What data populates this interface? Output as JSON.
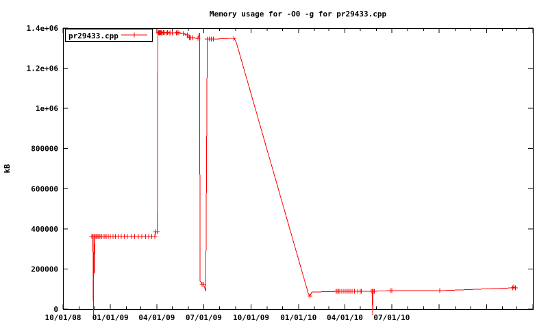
{
  "page": {
    "background": "#ffffff"
  },
  "chart_data": {
    "type": "line",
    "title": "Memory usage for -O0 -g for pr29433.cpp",
    "xlabel": "",
    "ylabel": "kB",
    "grid": false,
    "legend": {
      "position": "top-left",
      "boxed": true,
      "series_label": "pr29433.cpp"
    },
    "series_color": "#ff0000",
    "axis_color": "#000000",
    "background_color": "#ffffff",
    "marker": "plus",
    "x_axis": {
      "type": "time",
      "start": "2008-10-01",
      "end": "2011-04-01",
      "labeled_ticks": [
        "10/01/08",
        "01/01/09",
        "04/01/09",
        "07/01/09",
        "10/01/09",
        "01/01/10",
        "04/01/10",
        "07/01/10"
      ],
      "major_tick_every_months": 3,
      "minor_tick_every_months": 1
    },
    "y_axis": {
      "min": 0,
      "max": 1400000,
      "ticks": [
        0,
        200000,
        400000,
        600000,
        800000,
        1000000,
        1200000,
        1400000
      ],
      "tick_labels": [
        "0",
        "200000",
        "400000",
        "600000",
        "800000",
        "1e+06",
        "1.2e+06",
        "1.4e+06"
      ]
    },
    "points": [
      [
        "2008-11-26",
        362000,
        1,
        0
      ],
      [
        "2008-11-28",
        362000,
        1,
        0
      ],
      [
        "2008-11-29",
        0,
        0,
        1
      ],
      [
        "2008-11-30",
        362000,
        1,
        0
      ],
      [
        "2008-12-01",
        181000,
        0,
        0
      ],
      [
        "2008-12-02",
        362000,
        1,
        0
      ],
      [
        "2008-12-04",
        362000,
        1,
        0
      ],
      [
        "2008-12-06",
        362000,
        1,
        0
      ],
      [
        "2008-12-08",
        362000,
        1,
        0
      ],
      [
        "2008-12-10",
        362000,
        1,
        0
      ],
      [
        "2008-12-12",
        362000,
        1,
        0
      ],
      [
        "2008-12-15",
        362000,
        1,
        0
      ],
      [
        "2008-12-18",
        362000,
        1,
        0
      ],
      [
        "2008-12-21",
        362000,
        1,
        0
      ],
      [
        "2008-12-24",
        362000,
        1,
        0
      ],
      [
        "2008-12-28",
        362000,
        1,
        0
      ],
      [
        "2009-01-01",
        362000,
        1,
        0
      ],
      [
        "2009-01-06",
        362000,
        1,
        0
      ],
      [
        "2009-01-11",
        362000,
        1,
        0
      ],
      [
        "2009-01-16",
        362000,
        1,
        0
      ],
      [
        "2009-01-22",
        362000,
        1,
        0
      ],
      [
        "2009-01-28",
        362000,
        1,
        0
      ],
      [
        "2009-02-03",
        362000,
        1,
        0
      ],
      [
        "2009-02-10",
        362000,
        1,
        0
      ],
      [
        "2009-02-17",
        362000,
        1,
        0
      ],
      [
        "2009-02-24",
        362000,
        1,
        0
      ],
      [
        "2009-03-03",
        362000,
        1,
        0
      ],
      [
        "2009-03-10",
        362000,
        1,
        0
      ],
      [
        "2009-03-16",
        362000,
        1,
        0
      ],
      [
        "2009-03-22",
        362000,
        1,
        0
      ],
      [
        "2009-03-28",
        362000,
        1,
        0
      ],
      [
        "2009-03-30",
        386000,
        1,
        0
      ],
      [
        "2009-04-02",
        386000,
        1,
        0
      ],
      [
        "2009-04-03",
        1376000,
        0,
        0
      ],
      [
        "2009-04-04",
        1376000,
        1,
        0
      ],
      [
        "2009-04-05",
        1378000,
        1,
        0
      ],
      [
        "2009-04-06",
        1376000,
        1,
        0
      ],
      [
        "2009-04-07",
        1378000,
        1,
        0
      ],
      [
        "2009-04-08",
        1376000,
        1,
        0
      ],
      [
        "2009-04-09",
        1378000,
        1,
        0
      ],
      [
        "2009-04-10",
        1376000,
        1,
        0
      ],
      [
        "2009-04-12",
        1376000,
        1,
        0
      ],
      [
        "2009-04-14",
        1378000,
        1,
        0
      ],
      [
        "2009-04-16",
        1376000,
        1,
        0
      ],
      [
        "2009-04-19",
        1376000,
        1,
        0
      ],
      [
        "2009-04-22",
        1378000,
        1,
        0
      ],
      [
        "2009-04-25",
        1376000,
        1,
        0
      ],
      [
        "2009-04-28",
        1376000,
        1,
        0
      ],
      [
        "2009-05-01",
        1376000,
        1,
        0
      ],
      [
        "2009-05-09",
        1376000,
        1,
        0
      ],
      [
        "2009-05-11",
        1378000,
        1,
        0
      ],
      [
        "2009-05-14",
        1376000,
        1,
        0
      ],
      [
        "2009-05-22",
        1372000,
        1,
        0
      ],
      [
        "2009-05-30",
        1366000,
        1,
        0
      ],
      [
        "2009-06-03",
        1352000,
        1,
        0
      ],
      [
        "2009-06-06",
        1352000,
        1,
        0
      ],
      [
        "2009-06-10",
        1352000,
        1,
        0
      ],
      [
        "2009-06-20",
        1349000,
        1,
        0
      ],
      [
        "2009-06-23",
        1376000,
        0,
        0
      ],
      [
        "2009-06-24",
        140000,
        0,
        0
      ],
      [
        "2009-06-28",
        123000,
        1,
        0
      ],
      [
        "2009-07-01",
        123000,
        1,
        0
      ],
      [
        "2009-07-05",
        89000,
        0,
        0
      ],
      [
        "2009-07-08",
        1345000,
        1,
        0
      ],
      [
        "2009-07-12",
        1345000,
        1,
        0
      ],
      [
        "2009-07-16",
        1345000,
        1,
        0
      ],
      [
        "2009-07-20",
        1345000,
        1,
        0
      ],
      [
        "2009-08-29",
        1349000,
        1,
        0
      ],
      [
        "2009-09-02",
        1332000,
        0,
        0
      ],
      [
        "2010-01-20",
        79000,
        0,
        0
      ],
      [
        "2010-01-23",
        65000,
        1,
        0
      ],
      [
        "2010-01-27",
        85000,
        0,
        0
      ],
      [
        "2010-03-15",
        88000,
        1,
        0
      ],
      [
        "2010-03-17",
        89000,
        1,
        0
      ],
      [
        "2010-03-20",
        88000,
        1,
        0
      ],
      [
        "2010-03-22",
        89000,
        1,
        0
      ],
      [
        "2010-03-26",
        88000,
        1,
        0
      ],
      [
        "2010-03-30",
        89000,
        1,
        0
      ],
      [
        "2010-04-03",
        88000,
        1,
        0
      ],
      [
        "2010-04-07",
        89000,
        1,
        0
      ],
      [
        "2010-04-11",
        88000,
        1,
        0
      ],
      [
        "2010-04-15",
        89000,
        1,
        0
      ],
      [
        "2010-04-20",
        88000,
        1,
        0
      ],
      [
        "2010-04-26",
        89000,
        1,
        0
      ],
      [
        "2010-05-01",
        88000,
        1,
        0
      ],
      [
        "2010-05-03",
        89000,
        1,
        0
      ],
      [
        "2010-05-22",
        89000,
        1,
        0
      ],
      [
        "2010-05-24",
        89000,
        1,
        0
      ],
      [
        "2010-05-25",
        0,
        0,
        1
      ],
      [
        "2010-05-26",
        89000,
        1,
        0
      ],
      [
        "2010-05-28",
        89000,
        1,
        0
      ],
      [
        "2010-06-28",
        92000,
        1,
        0
      ],
      [
        "2010-07-01",
        92000,
        1,
        0
      ],
      [
        "2010-10-02",
        92000,
        1,
        0
      ],
      [
        "2011-02-21",
        106000,
        1,
        0
      ],
      [
        "2011-02-23",
        109000,
        1,
        0
      ],
      [
        "2011-02-26",
        106000,
        1,
        0
      ]
    ]
  }
}
